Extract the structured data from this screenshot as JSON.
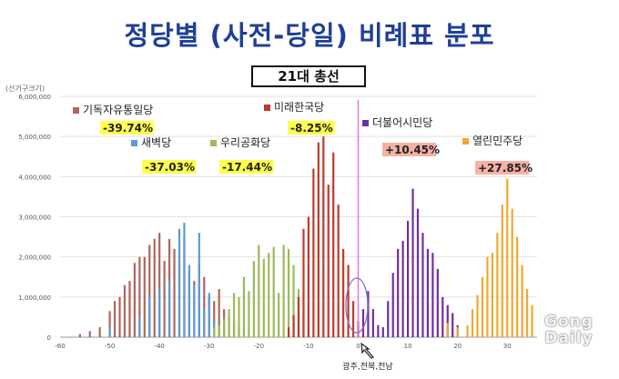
{
  "page_title": "정당별 (사전-당일) 비례표 분포",
  "watermark": "Gong Daily",
  "chart_data": {
    "type": "bar",
    "title": "21대 총선",
    "ylabel": "(선거구크기)",
    "xlabel": "",
    "xlim": [
      -60,
      36
    ],
    "ylim": [
      0,
      6000000
    ],
    "xticks": [
      -60,
      -50,
      -40,
      -30,
      -20,
      -10,
      0,
      10,
      20,
      30
    ],
    "yticks": [
      0,
      1000000,
      2000000,
      3000000,
      4000000,
      5000000,
      6000000
    ],
    "ytick_labels": [
      "0",
      "1,000,000",
      "2,000,000",
      "3,000,000",
      "4,000,000",
      "5,000,000",
      "6,000,000"
    ],
    "grid": "horizontal",
    "reference_line_x": 0,
    "annotation": {
      "text": "광주,전북,전남",
      "x": 4,
      "y": 1000000
    },
    "series": [
      {
        "name": "기독자유통일당",
        "label_value": "-39.74%",
        "label_bg": "#ffff4d",
        "color": "#b0655c",
        "bins": [
          [
            -56,
            80000
          ],
          [
            -54,
            150000
          ],
          [
            -52,
            250000
          ],
          [
            -50,
            650000
          ],
          [
            -49,
            900000
          ],
          [
            -48,
            1000000
          ],
          [
            -47,
            1300000
          ],
          [
            -46,
            1400000
          ],
          [
            -45,
            1850000
          ],
          [
            -44,
            2000000
          ],
          [
            -43,
            2000000
          ],
          [
            -42,
            2300000
          ],
          [
            -41,
            2450000
          ],
          [
            -40,
            2600000
          ],
          [
            -39,
            1900000
          ],
          [
            -38,
            2450000
          ],
          [
            -37,
            2200000
          ],
          [
            -36,
            1900000
          ],
          [
            -35,
            2500000
          ],
          [
            -34,
            1600000
          ],
          [
            -33,
            1400000
          ],
          [
            -32,
            1800000
          ],
          [
            -31,
            1500000
          ],
          [
            -30,
            1000000
          ],
          [
            -29,
            900000
          ],
          [
            -28,
            1200000
          ],
          [
            -27,
            700000
          ],
          [
            -26,
            500000
          ],
          [
            -25,
            400000
          ],
          [
            -24,
            300000
          ],
          [
            -23,
            250000
          ],
          [
            -22,
            150000
          ]
        ]
      },
      {
        "name": "새벽당",
        "label_value": "-37.03%",
        "label_bg": "#ffff4d",
        "color": "#5b9bd5",
        "bins": [
          [
            -50,
            250000
          ],
          [
            -44,
            500000
          ],
          [
            -42,
            1000000
          ],
          [
            -40,
            1200000
          ],
          [
            -38,
            1400000
          ],
          [
            -36,
            2700000
          ],
          [
            -35,
            2850000
          ],
          [
            -34,
            1800000
          ],
          [
            -33,
            1300000
          ],
          [
            -32,
            2600000
          ],
          [
            -31,
            700000
          ],
          [
            -30,
            1100000
          ],
          [
            -29,
            450000
          ]
        ]
      },
      {
        "name": "우리공화당",
        "label_value": "-17.44%",
        "label_bg": "#ffff4d",
        "color": "#9bbb59",
        "bins": [
          [
            -29,
            250000
          ],
          [
            -28,
            300000
          ],
          [
            -27,
            450000
          ],
          [
            -26,
            700000
          ],
          [
            -25,
            1100000
          ],
          [
            -24,
            1000000
          ],
          [
            -23,
            1500000
          ],
          [
            -22,
            1150000
          ],
          [
            -21,
            1900000
          ],
          [
            -20,
            2300000
          ],
          [
            -19,
            1950000
          ],
          [
            -18,
            2100000
          ],
          [
            -17,
            2250000
          ],
          [
            -16,
            1100000
          ],
          [
            -15,
            2300000
          ],
          [
            -14,
            2200000
          ],
          [
            -13,
            1800000
          ],
          [
            -12,
            1200000
          ],
          [
            -11,
            600000
          ],
          [
            -10,
            400000
          ]
        ]
      },
      {
        "name": "미래한국당",
        "label_value": "-8.25%",
        "label_bg": "#ffff4d",
        "color": "#c0392b",
        "bins": [
          [
            -14,
            250000
          ],
          [
            -13,
            550000
          ],
          [
            -12,
            1000000
          ],
          [
            -11,
            2700000
          ],
          [
            -10,
            3000000
          ],
          [
            -9,
            4200000
          ],
          [
            -8,
            4850000
          ],
          [
            -7,
            5000000
          ],
          [
            -6,
            3800000
          ],
          [
            -5,
            4600000
          ],
          [
            -4,
            3300000
          ],
          [
            -3,
            2200000
          ],
          [
            -2,
            1800000
          ],
          [
            -1,
            900000
          ],
          [
            0,
            400000
          ]
        ]
      },
      {
        "name": "더불어시민당",
        "label_value": "+10.45%",
        "label_bg": "#f7b0a5",
        "color": "#7030a0",
        "bins": [
          [
            1,
            700000
          ],
          [
            2,
            1150000
          ],
          [
            3,
            700000
          ],
          [
            4,
            300000
          ],
          [
            5,
            250000
          ],
          [
            6,
            900000
          ],
          [
            7,
            1600000
          ],
          [
            8,
            2200000
          ],
          [
            9,
            2400000
          ],
          [
            10,
            2900000
          ],
          [
            11,
            3700000
          ],
          [
            12,
            3200000
          ],
          [
            13,
            2600000
          ],
          [
            14,
            2200000
          ],
          [
            15,
            2100000
          ],
          [
            16,
            1700000
          ],
          [
            17,
            1000000
          ],
          [
            18,
            800000
          ],
          [
            19,
            600000
          ],
          [
            20,
            300000
          ]
        ]
      },
      {
        "name": "열린민주당",
        "label_value": "+27.85%",
        "label_bg": "#f7b0a5",
        "color": "#f0a830",
        "bins": [
          [
            18,
            350000
          ],
          [
            20,
            250000
          ],
          [
            22,
            300000
          ],
          [
            23,
            700000
          ],
          [
            24,
            1050000
          ],
          [
            25,
            1500000
          ],
          [
            26,
            2000000
          ],
          [
            27,
            2100000
          ],
          [
            28,
            2600000
          ],
          [
            29,
            3300000
          ],
          [
            30,
            3950000
          ],
          [
            31,
            3200000
          ],
          [
            32,
            2500000
          ],
          [
            33,
            1800000
          ],
          [
            34,
            1200000
          ],
          [
            35,
            800000
          ]
        ]
      }
    ]
  }
}
